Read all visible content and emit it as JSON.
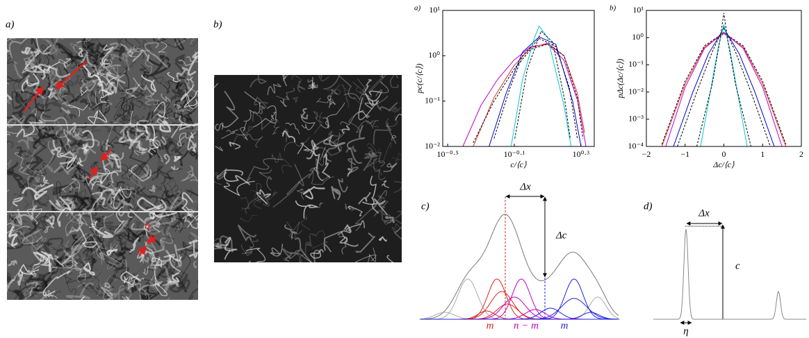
{
  "panel_labels": [
    "a)",
    "b)"
  ],
  "image_annotation": "η",
  "chart_data": [
    {
      "type": "line",
      "panel_label": "a)",
      "xlabel": "c/⟨c⟩",
      "ylabel": "pc(c/⟨c⟩)",
      "xscale": "log",
      "yscale": "log",
      "xlim": [
        0.295,
        2.4
      ],
      "ylim": [
        0.01,
        10
      ],
      "xticks": [
        {
          "value": 0.316,
          "label": "10⁻⁰·⁵"
        },
        {
          "value": 0.794,
          "label": "10⁻⁰·¹"
        },
        {
          "value": 1.995,
          "label": "10⁰·³"
        }
      ],
      "yticks": [
        {
          "value": 0.01,
          "label": "10⁻²"
        },
        {
          "value": 0.1,
          "label": "10⁻¹"
        },
        {
          "value": 1,
          "label": "10⁰"
        },
        {
          "value": 10,
          "label": "10¹"
        }
      ],
      "series": [
        {
          "color": "#c000c0",
          "dashed": false,
          "x": [
            0.39,
            0.5,
            0.63,
            0.79,
            1.0,
            1.26,
            1.58,
            1.91,
            2.14
          ],
          "values": [
            0.01,
            0.08,
            0.3,
            0.8,
            1.6,
            1.8,
            0.8,
            0.1,
            0.01
          ]
        },
        {
          "color": "#e03030",
          "dashed": false,
          "x": [
            0.45,
            0.6,
            0.79,
            1.0,
            1.26,
            1.58,
            1.9,
            2.1
          ],
          "values": [
            0.01,
            0.12,
            0.6,
            1.5,
            1.9,
            1.0,
            0.15,
            0.02
          ]
        },
        {
          "color": "#000000",
          "dashed": true,
          "x": [
            0.45,
            0.6,
            0.79,
            1.0,
            1.26,
            1.58,
            1.9,
            2.05
          ],
          "values": [
            0.012,
            0.1,
            0.5,
            1.4,
            1.8,
            1.0,
            0.12,
            0.015
          ]
        },
        {
          "color": "#0000d0",
          "dashed": false,
          "x": [
            0.56,
            0.71,
            0.89,
            1.12,
            1.41,
            1.78,
            2.0
          ],
          "values": [
            0.01,
            0.15,
            1.2,
            2.6,
            1.8,
            0.1,
            0.01
          ]
        },
        {
          "color": "#000000",
          "dashed": true,
          "x": [
            0.6,
            0.75,
            0.89,
            1.12,
            1.41,
            1.7,
            1.9
          ],
          "values": [
            0.015,
            0.2,
            1.0,
            2.4,
            1.6,
            0.2,
            0.015
          ]
        },
        {
          "color": "#00c8d8",
          "dashed": false,
          "x": [
            0.76,
            0.89,
            1.05,
            1.12,
            1.26,
            1.58,
            1.74
          ],
          "values": [
            0.01,
            0.3,
            2.5,
            4.5,
            2.5,
            0.08,
            0.01
          ]
        },
        {
          "color": "#000000",
          "dashed": true,
          "x": [
            0.8,
            0.95,
            1.15,
            1.35,
            1.6,
            1.72
          ],
          "values": [
            0.015,
            0.5,
            3.5,
            2.0,
            0.1,
            0.015
          ]
        }
      ]
    },
    {
      "type": "line",
      "panel_label": "b)",
      "xlabel": "Δc/⟨c⟩",
      "ylabel": "pΔc(Δc/⟨c⟩)",
      "xscale": "linear",
      "yscale": "log",
      "xlim": [
        -2,
        2
      ],
      "ylim": [
        0.0001,
        10
      ],
      "xticks": [
        {
          "value": -2,
          "label": "−2"
        },
        {
          "value": -1,
          "label": "−1"
        },
        0,
        1,
        2
      ],
      "yticks": [
        {
          "value": 0.0001,
          "label": "10⁻⁴"
        },
        {
          "value": 0.001,
          "label": "10⁻³"
        },
        {
          "value": 0.01,
          "label": "10⁻²"
        },
        {
          "value": 0.1,
          "label": "10⁻¹"
        },
        {
          "value": 1,
          "label": "10⁰"
        },
        {
          "value": 10,
          "label": "10¹"
        }
      ],
      "series": [
        {
          "color": "#e03030",
          "dashed": false,
          "x": [
            -1.6,
            -1,
            -0.5,
            0,
            0.5,
            1,
            1.6
          ],
          "values": [
            0.0001,
            0.02,
            0.45,
            1.4,
            0.45,
            0.02,
            0.0001
          ]
        },
        {
          "color": "#000000",
          "dashed": true,
          "x": [
            -1.6,
            -1,
            -0.5,
            0,
            0.5,
            1,
            1.6
          ],
          "values": [
            0.00012,
            0.025,
            0.5,
            1.5,
            0.5,
            0.025,
            0.00012
          ]
        },
        {
          "color": "#c000c0",
          "dashed": false,
          "x": [
            -1.5,
            -1,
            -0.5,
            0,
            0.5,
            1,
            1.5
          ],
          "values": [
            0.0001,
            0.015,
            0.4,
            1.6,
            0.4,
            0.015,
            0.0001
          ]
        },
        {
          "color": "#0000d0",
          "dashed": false,
          "x": [
            -1.3,
            -0.8,
            -0.4,
            0,
            0.4,
            0.8,
            1.3
          ],
          "values": [
            0.0001,
            0.01,
            0.25,
            2.2,
            0.25,
            0.01,
            0.0001
          ]
        },
        {
          "color": "#000000",
          "dashed": true,
          "x": [
            -1.2,
            -0.7,
            -0.3,
            0,
            0.3,
            0.7,
            1.2
          ],
          "values": [
            0.0001,
            0.01,
            0.3,
            2.5,
            0.3,
            0.01,
            0.0001
          ]
        },
        {
          "color": "#00c8d8",
          "dashed": false,
          "x": [
            -0.6,
            -0.35,
            -0.15,
            0,
            0.15,
            0.35,
            0.6
          ],
          "values": [
            0.0001,
            0.01,
            0.4,
            3.0,
            0.4,
            0.01,
            0.0001
          ]
        },
        {
          "color": "#000000",
          "dashed": true,
          "x": [
            -0.7,
            -0.3,
            -0.1,
            0,
            0.1,
            0.3,
            0.7
          ],
          "values": [
            0.0001,
            0.02,
            0.8,
            8,
            0.8,
            0.02,
            0.0001
          ]
        }
      ]
    }
  ],
  "diagrams": {
    "c": {
      "label": "c)",
      "delta_x": "Δx",
      "delta_c": "Δc",
      "groups": [
        "m",
        "n − m",
        "m"
      ]
    },
    "d": {
      "label": "d)",
      "delta_x": "Δx",
      "height": "c",
      "width": "η"
    }
  }
}
